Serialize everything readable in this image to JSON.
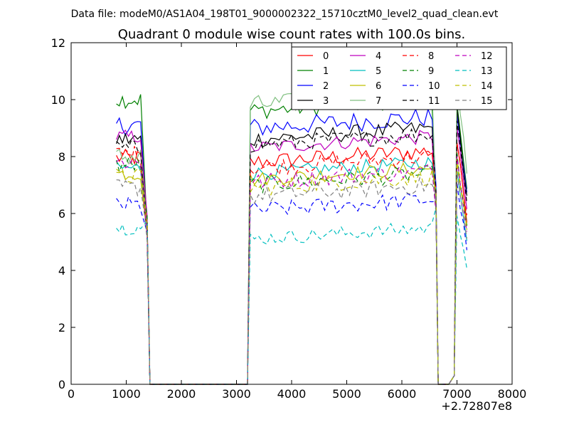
{
  "figure": {
    "suptitle": "Data file: modeM0/AS1A04_198T01_9000002322_15710cztM0_level2_quad_clean.evt",
    "x_offset_label": "+2.72807e8"
  },
  "chart_data": {
    "type": "line",
    "title": "Quadrant 0 module wise count rates with 100.0s bins.",
    "xlabel": "",
    "ylabel": "",
    "xlim": [
      0,
      8000
    ],
    "ylim": [
      0,
      12
    ],
    "x_ticks": [
      0,
      1000,
      2000,
      3000,
      4000,
      5000,
      6000,
      7000,
      8000
    ],
    "y_ticks": [
      0,
      2,
      4,
      6,
      8,
      10,
      12
    ],
    "grid": false,
    "legend_position": "top-right",
    "legend_columns": 4,
    "series": [
      {
        "name": "0",
        "color": "#ff0000",
        "dash": "solid",
        "base": 7.8,
        "early": 7.95,
        "late": 8.5,
        "noise": 0.3
      },
      {
        "name": "1",
        "color": "#008000",
        "dash": "solid",
        "base": 9.6,
        "early": 10.0,
        "late": 9.8,
        "noise": 0.3
      },
      {
        "name": "2",
        "color": "#0000ff",
        "dash": "solid",
        "base": 9.0,
        "early": 9.1,
        "late": 9.6,
        "noise": 0.35
      },
      {
        "name": "3",
        "color": "#000000",
        "dash": "solid",
        "base": 8.6,
        "early": 8.6,
        "late": 9.6,
        "noise": 0.3
      },
      {
        "name": "4",
        "color": "#bf00bf",
        "dash": "solid",
        "base": 8.3,
        "early": 8.7,
        "late": 9.0,
        "noise": 0.25
      },
      {
        "name": "5",
        "color": "#00bfbf",
        "dash": "solid",
        "base": 7.4,
        "early": 7.6,
        "late": 7.5,
        "noise": 0.25
      },
      {
        "name": "6",
        "color": "#bfbf00",
        "dash": "solid",
        "base": 7.2,
        "early": 7.4,
        "late": 8.0,
        "noise": 0.25
      },
      {
        "name": "7",
        "color": "#7fbf7f",
        "dash": "solid",
        "base": 9.8,
        "early": 8.0,
        "late": 10.8,
        "noise": 0.35
      },
      {
        "name": "8",
        "color": "#ff0000",
        "dash": "dashed",
        "base": 7.6,
        "early": 8.1,
        "late": 8.6,
        "noise": 0.3
      },
      {
        "name": "9",
        "color": "#008000",
        "dash": "dashed",
        "base": 7.0,
        "early": 7.7,
        "late": 8.0,
        "noise": 0.3
      },
      {
        "name": "10",
        "color": "#0000ff",
        "dash": "dashed",
        "base": 6.1,
        "early": 6.3,
        "late": 7.0,
        "noise": 0.3
      },
      {
        "name": "11",
        "color": "#000000",
        "dash": "dashed",
        "base": 8.4,
        "early": 8.3,
        "late": 9.4,
        "noise": 0.3
      },
      {
        "name": "12",
        "color": "#bf00bf",
        "dash": "dashed",
        "base": 7.1,
        "early": 7.8,
        "late": 8.0,
        "noise": 0.3
      },
      {
        "name": "13",
        "color": "#00bfbf",
        "dash": "dashed",
        "base": 5.1,
        "early": 5.5,
        "late": 6.0,
        "noise": 0.25
      },
      {
        "name": "14",
        "color": "#bfbf00",
        "dash": "dashed",
        "base": 6.9,
        "early": 7.3,
        "late": 7.8,
        "noise": 0.3
      },
      {
        "name": "15",
        "color": "#808080",
        "dash": "dashed",
        "base": 6.6,
        "early": 6.9,
        "late": 7.4,
        "noise": 0.3
      }
    ],
    "segments": [
      {
        "x_start": 820,
        "x_end": 1300,
        "step": 55,
        "drop_to": 0,
        "drop_x": [
          1380,
          1430
        ]
      },
      {
        "x_start": 3250,
        "x_end": 6580,
        "step": 75,
        "rise_from": 3200,
        "drop_x": [
          6620,
          6660
        ]
      },
      {
        "x_start": 7000,
        "x_end": 7200,
        "step": 60,
        "rise_from": 6850
      }
    ],
    "zero_gaps": [
      [
        1430,
        3200
      ],
      [
        6660,
        6850
      ]
    ]
  }
}
